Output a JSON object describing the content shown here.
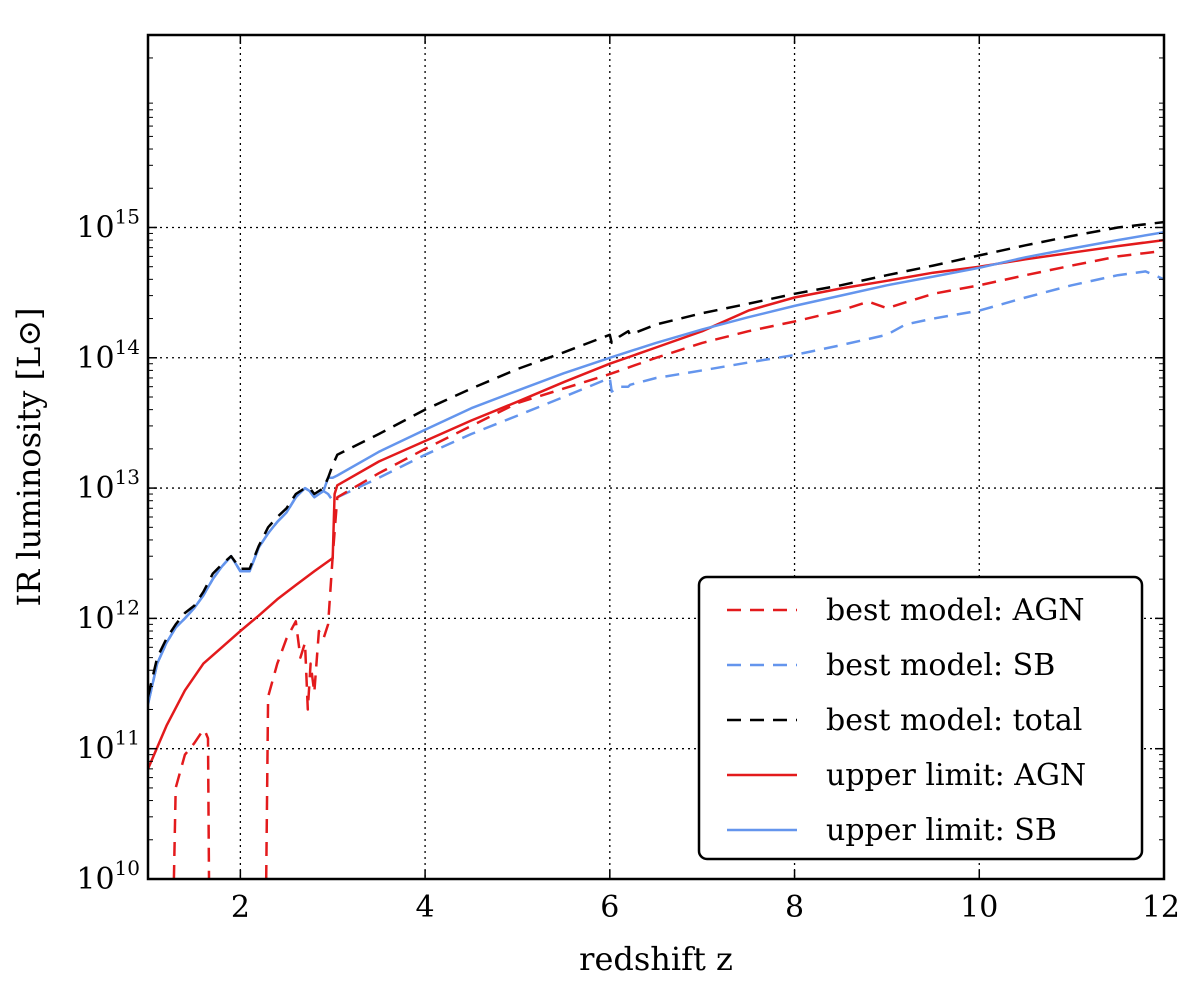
{
  "chart_data": {
    "type": "line",
    "xlabel": "redshift z",
    "ylabel": "IR luminosity [L⊙]",
    "xlim": [
      1,
      12
    ],
    "ylim": [
      10000000000,
      30000000000000000
    ],
    "y_scale": "log",
    "grid": true,
    "legend_position": "bottom-right",
    "x_ticks": [
      {
        "value": 2,
        "label": "2"
      },
      {
        "value": 4,
        "label": "4"
      },
      {
        "value": 6,
        "label": "6"
      },
      {
        "value": 8,
        "label": "8"
      },
      {
        "value": 10,
        "label": "10"
      },
      {
        "value": 12,
        "label": "12"
      }
    ],
    "y_ticks": [
      {
        "value": 10000000000,
        "base": "10",
        "exp": "10"
      },
      {
        "value": 100000000000,
        "base": "10",
        "exp": "11"
      },
      {
        "value": 1000000000000,
        "base": "10",
        "exp": "12"
      },
      {
        "value": 10000000000000,
        "base": "10",
        "exp": "13"
      },
      {
        "value": 100000000000000,
        "base": "10",
        "exp": "14"
      },
      {
        "value": 1000000000000000,
        "base": "10",
        "exp": "15"
      }
    ],
    "series": [
      {
        "name": "best model: AGN",
        "color": "#e31a1c",
        "style": "dashed",
        "segments": [
          {
            "x": [
              1.28,
              1.3,
              1.4,
              1.5,
              1.6,
              1.62,
              1.65,
              1.66
            ],
            "y": [
              10000000000.0,
              50000000000.0,
              90000000000.0,
              110000000000.0,
              140000000000.0,
              135000000000.0,
              120000000000.0,
              10000000000.0
            ]
          },
          {
            "x": [
              2.28,
              2.3,
              2.4,
              2.5,
              2.6,
              2.65,
              2.7,
              2.73,
              2.76,
              2.8,
              2.85,
              2.9,
              2.95,
              3.0,
              3.05,
              3.5,
              4.0,
              4.5,
              5.0,
              5.5,
              6.0,
              6.5,
              7.0,
              7.5,
              8.0,
              8.5,
              8.8,
              9.0,
              9.5,
              10.0,
              10.5,
              11.0,
              11.5,
              11.9,
              12.0
            ],
            "y": [
              10000000000.0,
              250000000000.0,
              450000000000.0,
              700000000000.0,
              950000000000.0,
              500000000000.0,
              650000000000.0,
              200000000000.0,
              450000000000.0,
              270000000000.0,
              800000000000.0,
              700000000000.0,
              900000000000.0,
              3000000000000.0,
              8500000000000.0,
              13000000000000.0,
              20000000000000.0,
              30000000000000.0,
              45000000000000.0,
              58000000000000.0,
              75000000000000.0,
              100000000000000.0,
              130000000000000.0,
              160000000000000.0,
              190000000000000.0,
              230000000000000.0,
              270000000000000.0,
              240000000000000.0,
              310000000000000.0,
              360000000000000.0,
              430000000000000.0,
              510000000000000.0,
              600000000000000.0,
              650000000000000.0,
              680000000000000.0
            ]
          }
        ]
      },
      {
        "name": "best model: SB",
        "color": "#6495ed",
        "style": "dashed",
        "segments": [
          {
            "x": [
              1.0,
              1.1,
              1.2,
              1.3,
              1.4,
              1.5,
              1.6,
              1.7,
              1.8,
              1.9,
              2.0,
              2.1,
              2.2,
              2.3,
              2.4,
              2.5,
              2.6,
              2.7,
              2.75,
              2.8,
              2.9,
              2.95,
              3.0,
              3.05,
              3.5,
              4.0,
              4.5,
              5.0,
              5.5,
              6.0,
              6.02,
              6.1,
              6.2,
              6.22,
              6.5,
              7.0,
              7.5,
              8.0,
              8.5,
              9.0,
              9.2,
              9.5,
              10.0,
              10.5,
              11.0,
              11.5,
              11.8,
              12.0
            ],
            "y": [
              220000000000.0,
              450000000000.0,
              650000000000.0,
              850000000000.0,
              1000000000000.0,
              1200000000000.0,
              1500000000000.0,
              2000000000000.0,
              2500000000000.0,
              3000000000000.0,
              2300000000000.0,
              2300000000000.0,
              3500000000000.0,
              4500000000000.0,
              5500000000000.0,
              6500000000000.0,
              8500000000000.0,
              10000000000000.0,
              9500000000000.0,
              8500000000000.0,
              9500000000000.0,
              9000000000000.0,
              8000000000000.0,
              8500000000000.0,
              12000000000000.0,
              18000000000000.0,
              26000000000000.0,
              36000000000000.0,
              50000000000000.0,
              70000000000000.0,
              55000000000000.0,
              60000000000000.0,
              60000000000000.0,
              62000000000000.0,
              70000000000000.0,
              80000000000000.0,
              92000000000000.0,
              105000000000000.0,
              125000000000000.0,
              150000000000000.0,
              180000000000000.0,
              200000000000000.0,
              230000000000000.0,
              290000000000000.0,
              360000000000000.0,
              430000000000000.0,
              460000000000000.0,
              400000000000000.0
            ]
          }
        ]
      },
      {
        "name": "best model: total",
        "color": "#000000",
        "style": "dashed",
        "segments": [
          {
            "x": [
              1.0,
              1.1,
              1.2,
              1.3,
              1.4,
              1.5,
              1.6,
              1.7,
              1.8,
              1.9,
              2.0,
              2.1,
              2.2,
              2.3,
              2.4,
              2.5,
              2.6,
              2.7,
              2.75,
              2.8,
              2.9,
              2.95,
              3.0,
              3.05,
              3.5,
              4.0,
              4.5,
              5.0,
              5.5,
              6.0,
              6.02,
              6.1,
              6.2,
              6.22,
              6.5,
              7.0,
              7.5,
              8.0,
              8.5,
              9.0,
              9.5,
              10.0,
              10.5,
              11.0,
              11.5,
              12.0
            ],
            "y": [
              250000000000.0,
              500000000000.0,
              700000000000.0,
              900000000000.0,
              1100000000000.0,
              1250000000000.0,
              1600000000000.0,
              2200000000000.0,
              2600000000000.0,
              3000000000000.0,
              2400000000000.0,
              2400000000000.0,
              3600000000000.0,
              5000000000000.0,
              6000000000000.0,
              7000000000000.0,
              9000000000000.0,
              10000000000000.0,
              10000000000000.0,
              9000000000000.0,
              10000000000000.0,
              12000000000000.0,
              15000000000000.0,
              18000000000000.0,
              26000000000000.0,
              40000000000000.0,
              58000000000000.0,
              82000000000000.0,
              110000000000000.0,
              150000000000000.0,
              130000000000000.0,
              145000000000000.0,
              160000000000000.0,
              150000000000000.0,
              180000000000000.0,
              220000000000000.0,
              260000000000000.0,
              310000000000000.0,
              360000000000000.0,
              430000000000000.0,
              510000000000000.0,
              610000000000000.0,
              730000000000000.0,
              860000000000000.0,
              1000000000000000.0,
              1100000000000000.0
            ]
          }
        ]
      },
      {
        "name": "upper limit: AGN",
        "color": "#e31a1c",
        "style": "solid",
        "segments": [
          {
            "x": [
              1.0,
              1.2,
              1.4,
              1.6,
              1.8,
              2.0,
              2.2,
              2.4,
              2.6,
              2.8,
              3.0,
              3.02,
              3.05,
              3.5,
              4.0,
              4.5,
              5.0,
              5.5,
              6.0,
              6.5,
              7.0,
              7.5,
              8.0,
              8.5,
              9.0,
              9.5,
              10.0,
              10.5,
              11.0,
              11.5,
              12.0
            ],
            "y": [
              70000000000.0,
              150000000000.0,
              280000000000.0,
              450000000000.0,
              600000000000.0,
              800000000000.0,
              1050000000000.0,
              1400000000000.0,
              1800000000000.0,
              2300000000000.0,
              2900000000000.0,
              9000000000000.0,
              10500000000000.0,
              16000000000000.0,
              23000000000000.0,
              33000000000000.0,
              46000000000000.0,
              65000000000000.0,
              90000000000000.0,
              120000000000000.0,
              160000000000000.0,
              230000000000000.0,
              290000000000000.0,
              340000000000000.0,
              390000000000000.0,
              450000000000000.0,
              500000000000000.0,
              570000000000000.0,
              640000000000000.0,
              720000000000000.0,
              800000000000000.0
            ]
          }
        ]
      },
      {
        "name": "upper limit: SB",
        "color": "#6495ed",
        "style": "solid",
        "segments": [
          {
            "x": [
              1.0,
              1.1,
              1.2,
              1.3,
              1.4,
              1.5,
              1.6,
              1.7,
              1.8,
              1.9,
              2.0,
              2.1,
              2.2,
              2.3,
              2.4,
              2.5,
              2.6,
              2.7,
              2.75,
              2.8,
              2.9,
              2.95,
              3.0,
              3.05,
              3.5,
              4.0,
              4.5,
              5.0,
              5.5,
              6.0,
              6.5,
              7.0,
              7.5,
              8.0,
              8.5,
              9.0,
              9.5,
              10.0,
              10.5,
              11.0,
              11.5,
              12.0
            ],
            "y": [
              220000000000.0,
              450000000000.0,
              650000000000.0,
              850000000000.0,
              1000000000000.0,
              1200000000000.0,
              1500000000000.0,
              2000000000000.0,
              2500000000000.0,
              3000000000000.0,
              2300000000000.0,
              2300000000000.0,
              3500000000000.0,
              4500000000000.0,
              5500000000000.0,
              6500000000000.0,
              8500000000000.0,
              10000000000000.0,
              9500000000000.0,
              8500000000000.0,
              9500000000000.0,
              12000000000000.0,
              12000000000000.0,
              12500000000000.0,
              19000000000000.0,
              28000000000000.0,
              41000000000000.0,
              56000000000000.0,
              76000000000000.0,
              100000000000000.0,
              130000000000000.0,
              165000000000000.0,
              205000000000000.0,
              250000000000000.0,
              300000000000000.0,
              360000000000000.0,
              420000000000000.0,
              490000000000000.0,
              590000000000000.0,
              690000000000000.0,
              800000000000000.0,
              920000000000000.0
            ]
          }
        ]
      }
    ]
  }
}
